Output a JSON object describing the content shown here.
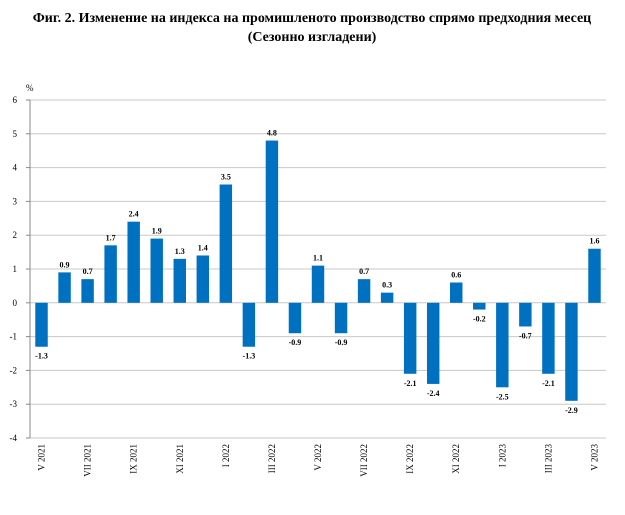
{
  "chart_data": {
    "type": "bar",
    "title": "Фиг. 2. Изменение на индекса на промишленото производство спрямо предходния месец",
    "subtitle": "(Сезонно изгладени)",
    "y_label": "%",
    "categories": [
      "V 2021",
      null,
      "VII 2021",
      null,
      "IX 2021",
      null,
      "XI 2021",
      null,
      "I 2022",
      null,
      "III 2022",
      null,
      "V 2022",
      null,
      "VII 2022",
      null,
      "IX 2022",
      null,
      "XI 2022",
      null,
      "I 2023",
      null,
      "III 2023",
      null,
      "V 2023"
    ],
    "values": [
      -1.3,
      0.9,
      0.7,
      1.7,
      2.4,
      1.9,
      1.3,
      1.4,
      3.5,
      -1.3,
      4.8,
      -0.9,
      1.1,
      -0.9,
      0.7,
      0.3,
      -2.1,
      -2.4,
      0.6,
      -0.2,
      -2.5,
      -0.7,
      -2.1,
      -2.9,
      1.6
    ],
    "color": "#0070c0",
    "ylim": [
      -4,
      6
    ],
    "yticks": [
      -4,
      -3,
      -2,
      -1,
      0,
      1,
      2,
      3,
      4,
      5,
      6
    ],
    "grid": true
  }
}
